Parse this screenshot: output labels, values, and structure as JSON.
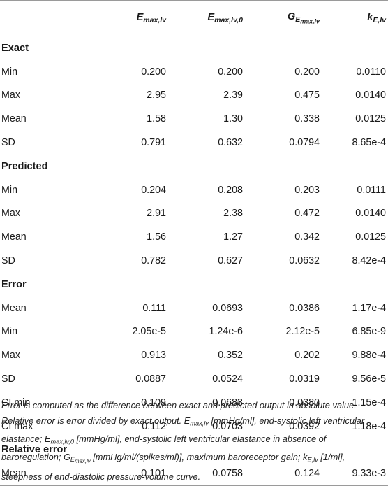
{
  "header": {
    "col0": "",
    "col1_main": "E",
    "col1_sub": "max,lv",
    "col2_main": "E",
    "col2_sub": "max,lv,0",
    "col3_main": "G",
    "col3_sub1": "E",
    "col3_sub2": "max,lv",
    "col4_main": "k",
    "col4_sub": "E,lv"
  },
  "sections": [
    {
      "title": "Exact",
      "rows": [
        {
          "label": "Min",
          "v1": "0.200",
          "v2": "0.200",
          "v3": "0.200",
          "v4": "0.0110"
        },
        {
          "label": "Max",
          "v1": "2.95",
          "v2": "2.39",
          "v3": "0.475",
          "v4": "0.0140"
        },
        {
          "label": "Mean",
          "v1": "1.58",
          "v2": "1.30",
          "v3": "0.338",
          "v4": "0.0125"
        },
        {
          "label": "SD",
          "v1": "0.791",
          "v2": "0.632",
          "v3": "0.0794",
          "v4": "8.65e-4"
        }
      ]
    },
    {
      "title": "Predicted",
      "rows": [
        {
          "label": "Min",
          "v1": "0.204",
          "v2": "0.208",
          "v3": "0.203",
          "v4": "0.0111"
        },
        {
          "label": "Max",
          "v1": "2.91",
          "v2": "2.38",
          "v3": "0.472",
          "v4": "0.0140"
        },
        {
          "label": "Mean",
          "v1": "1.56",
          "v2": "1.27",
          "v3": "0.342",
          "v4": "0.0125"
        },
        {
          "label": "SD",
          "v1": "0.782",
          "v2": "0.627",
          "v3": "0.0632",
          "v4": "8.42e-4"
        }
      ]
    },
    {
      "title": "Error",
      "rows": [
        {
          "label": "Mean",
          "v1": "0.111",
          "v2": "0.0693",
          "v3": "0.0386",
          "v4": "1.17e-4"
        },
        {
          "label": "Min",
          "v1": "2.05e-5",
          "v2": "1.24e-6",
          "v3": "2.12e-5",
          "v4": "6.85e-9"
        },
        {
          "label": "Max",
          "v1": "0.913",
          "v2": "0.352",
          "v3": "0.202",
          "v4": "9.88e-4"
        },
        {
          "label": "SD",
          "v1": "0.0887",
          "v2": "0.0524",
          "v3": "0.0319",
          "v4": "9.56e-5"
        },
        {
          "label": "CI min",
          "v1": "0.109",
          "v2": "0.0683",
          "v3": "0.0380",
          "v4": "1.15e-4"
        },
        {
          "label": "CI max",
          "v1": "0.112",
          "v2": "0.0703",
          "v3": "0.0392",
          "v4": "1.18e-4"
        }
      ]
    },
    {
      "title": "Relative error",
      "rows": [
        {
          "label": "Mean",
          "v1": "0.101",
          "v2": "0.0758",
          "v3": "0.124",
          "v4": "9.33e-3"
        }
      ]
    }
  ],
  "caption": {
    "p1": "Error is computed as the difference between exact and predicted output in absolute value. Relative error is error divided by exact output. ",
    "e1_main": "E",
    "e1_sub": "max,lv",
    "p2": " [mmHg/ml], end-systolic left ventricular elastance; ",
    "e2_main": "E",
    "e2_sub": "max,lv,0",
    "p3": " [mmHg/ml], end-systolic left ventricular elastance in absence of baroregulation; ",
    "g_main": "G",
    "g_sub1": "E",
    "g_sub2": "max,lv",
    "p4": " [mmHg/ml/(spikes/ml)], maximum baroreceptor gain; ",
    "k_main": "k",
    "k_sub": "E,lv",
    "p5": " [1/ml], steepness of end-diastolic pressure-volume curve."
  }
}
